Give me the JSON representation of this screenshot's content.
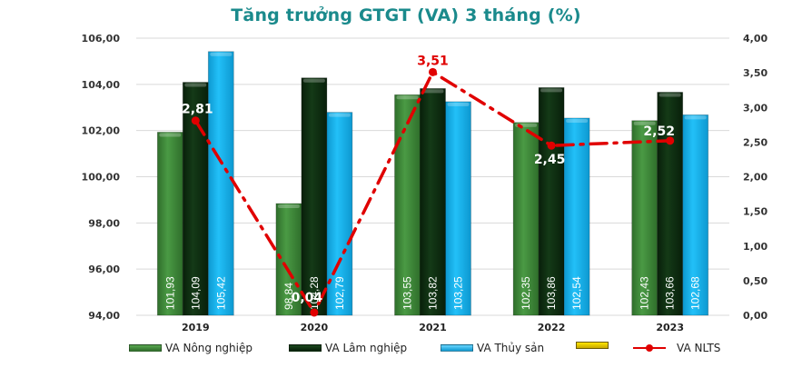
{
  "title": "Tăng trưởng GTGT (VA) 3 tháng (%)",
  "colors": {
    "title": "#1a8a8c",
    "nong_nghiep": "#3f8a3a",
    "lam_nghiep": "#0d2f10",
    "thuy_san": "#19b4f0",
    "empty_series": "#f2d000",
    "nlts_line": "#e00000",
    "grid": "#d9d9d9"
  },
  "legend": {
    "items": [
      {
        "label": "VA Nông nghiệp",
        "type": "bar"
      },
      {
        "label": "VA Lâm nghiệp",
        "type": "bar"
      },
      {
        "label": "VA Thủy sản",
        "type": "bar"
      },
      {
        "label": "",
        "type": "bar"
      },
      {
        "label": "VA NLTS",
        "type": "line"
      }
    ]
  },
  "chart_data": {
    "type": "bar",
    "title": "Tăng trưởng GTGT (VA) 3 tháng (%)",
    "categories": [
      "2019",
      "2020",
      "2021",
      "2022",
      "2023"
    ],
    "series": [
      {
        "name": "VA Nông nghiệp",
        "type": "bar",
        "axis": "left",
        "values": [
          101.93,
          98.84,
          103.55,
          102.35,
          102.43
        ],
        "labels": [
          "101,93",
          "98,84",
          "103,55",
          "102,35",
          "102,43"
        ]
      },
      {
        "name": "VA Lâm nghiệp",
        "type": "bar",
        "axis": "left",
        "values": [
          104.09,
          104.28,
          103.82,
          103.86,
          103.66
        ],
        "labels": [
          "104,09",
          "104,28",
          "103,82",
          "103,86",
          "103,66"
        ]
      },
      {
        "name": "VA Thủy sản",
        "type": "bar",
        "axis": "left",
        "values": [
          105.42,
          102.79,
          103.25,
          102.54,
          102.68
        ],
        "labels": [
          "105,42",
          "102,79",
          "103,25",
          "102,54",
          "102,68"
        ]
      },
      {
        "name": "VA NLTS",
        "type": "line",
        "axis": "right",
        "values": [
          2.81,
          0.04,
          3.51,
          2.45,
          2.52
        ],
        "labels": [
          "2,81",
          "0,04",
          "3,51",
          "2,45",
          "2,52"
        ]
      }
    ],
    "y_left": {
      "min": 94,
      "max": 106,
      "step": 2,
      "ticks": [
        "94,00",
        "96,00",
        "98,00",
        "100,00",
        "102,00",
        "104,00",
        "106,00"
      ]
    },
    "y_right": {
      "min": 0,
      "max": 4,
      "step": 0.5,
      "ticks": [
        "0,00",
        "0,50",
        "1,00",
        "1,50",
        "2,00",
        "2,50",
        "3,00",
        "3,50",
        "4,00"
      ]
    },
    "xlabel": "",
    "ylabel": "",
    "grid": true,
    "legend_position": "bottom"
  }
}
